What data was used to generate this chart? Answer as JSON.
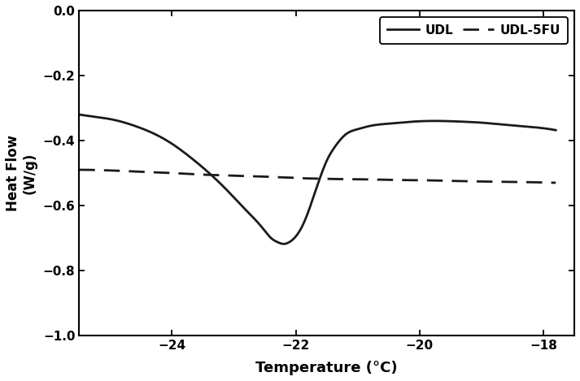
{
  "title": "",
  "xlabel": "Temperature (°C)",
  "ylabel": "Heat Flow\n(W/g)",
  "xlim": [
    -25.5,
    -17.5
  ],
  "ylim": [
    -1.0,
    0.0
  ],
  "xticks": [
    -24,
    -22,
    -20,
    -18
  ],
  "yticks": [
    0.0,
    -0.2,
    -0.4,
    -0.6,
    -0.8,
    -1.0
  ],
  "legend_labels": [
    "UDL",
    "UDL-5FU"
  ],
  "line_color": "#1a1a1a",
  "background_color": "#ffffff",
  "udl_x": [
    -25.5,
    -25.2,
    -24.9,
    -24.6,
    -24.3,
    -24.0,
    -23.7,
    -23.4,
    -23.1,
    -22.8,
    -22.6,
    -22.5,
    -22.4,
    -22.3,
    -22.2,
    -22.1,
    -22.0,
    -21.9,
    -21.8,
    -21.7,
    -21.6,
    -21.5,
    -21.4,
    -21.3,
    -21.2,
    -21.0,
    -20.8,
    -20.5,
    -20.2,
    -19.9,
    -19.6,
    -19.3,
    -19.0,
    -18.7,
    -18.4,
    -18.1,
    -17.8
  ],
  "udl_y": [
    -0.32,
    -0.328,
    -0.338,
    -0.355,
    -0.378,
    -0.41,
    -0.452,
    -0.5,
    -0.555,
    -0.615,
    -0.655,
    -0.678,
    -0.7,
    -0.712,
    -0.718,
    -0.712,
    -0.695,
    -0.665,
    -0.62,
    -0.565,
    -0.51,
    -0.462,
    -0.428,
    -0.402,
    -0.382,
    -0.365,
    -0.355,
    -0.348,
    -0.343,
    -0.34,
    -0.34,
    -0.342,
    -0.345,
    -0.35,
    -0.355,
    -0.36,
    -0.368
  ],
  "udl5fu_x": [
    -25.5,
    -25.0,
    -24.5,
    -24.0,
    -23.5,
    -23.0,
    -22.7,
    -22.5,
    -22.3,
    -22.1,
    -22.0,
    -21.9,
    -21.7,
    -21.5,
    -21.0,
    -20.5,
    -20.0,
    -19.5,
    -19.0,
    -18.5,
    -18.0,
    -17.8
  ],
  "udl5fu_y": [
    -0.49,
    -0.492,
    -0.496,
    -0.5,
    -0.505,
    -0.508,
    -0.51,
    -0.511,
    -0.513,
    -0.514,
    -0.515,
    -0.516,
    -0.517,
    -0.518,
    -0.519,
    -0.521,
    -0.522,
    -0.524,
    -0.526,
    -0.527,
    -0.529,
    -0.53
  ]
}
